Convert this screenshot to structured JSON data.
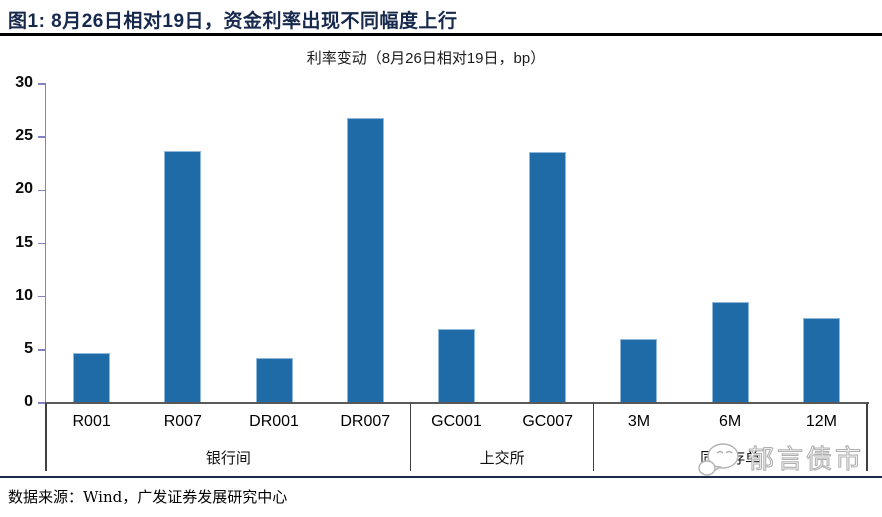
{
  "figure": {
    "title": "图1:  8月26日相对19日，资金利率出现不同幅度上行",
    "source": "数据来源：Wind，广发证券发展研究中心",
    "watermark": "郁言债市"
  },
  "chart_data": {
    "type": "bar",
    "title": "利率变动（8月26日相对19日，bp）",
    "categories": [
      "R001",
      "R007",
      "DR001",
      "DR007",
      "GC001",
      "GC007",
      "3M",
      "6M",
      "12M"
    ],
    "values": [
      4.7,
      23.7,
      4.2,
      26.8,
      7.0,
      23.6,
      6.0,
      9.5,
      8.0
    ],
    "groups": [
      {
        "label": "银行间",
        "span": 4
      },
      {
        "label": "上交所",
        "span": 2
      },
      {
        "label": "同业存单",
        "span": 3
      }
    ],
    "xlabel": "",
    "ylabel": "",
    "ylim": [
      0,
      30
    ],
    "yticks": [
      0,
      5,
      10,
      15,
      20,
      25,
      30
    ],
    "grid": false,
    "legend": false,
    "bar_color": "#1F6BA8",
    "bar_edge_color": "#8FB8DA",
    "axis_color": "#8282C2",
    "baseline_color": "#595959",
    "separator_color": "#404040"
  }
}
